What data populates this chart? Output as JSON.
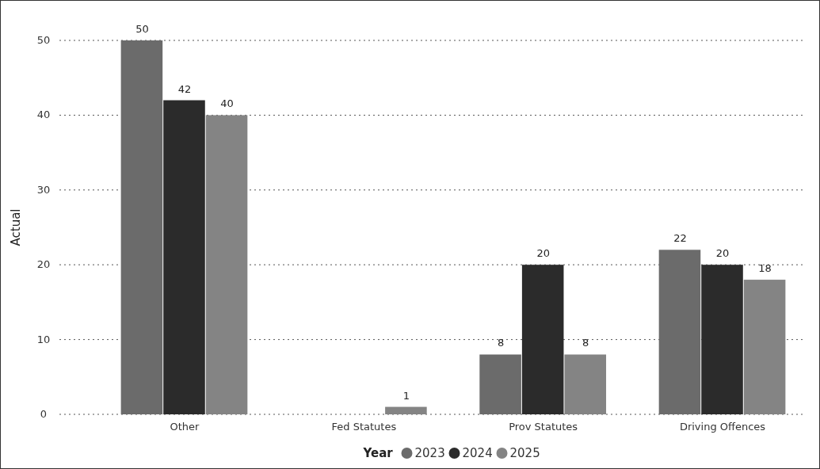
{
  "chart_data": {
    "type": "bar",
    "categories": [
      "Other",
      "Fed Statutes",
      "Prov Statutes",
      "Driving Offences"
    ],
    "series": [
      {
        "name": "2023",
        "color": "#6b6b6b",
        "values": [
          50,
          null,
          8,
          22
        ]
      },
      {
        "name": "2024",
        "color": "#2b2b2b",
        "values": [
          42,
          null,
          20,
          20
        ]
      },
      {
        "name": "2025",
        "color": "#848484",
        "values": [
          40,
          1,
          8,
          18
        ]
      }
    ],
    "ylabel": "Actual",
    "legend_title": "Year",
    "ylim": [
      0,
      50
    ],
    "yticks": [
      0,
      10,
      20,
      30,
      40,
      50
    ],
    "grid": "y",
    "legend": "bottom",
    "data_labels": true
  }
}
